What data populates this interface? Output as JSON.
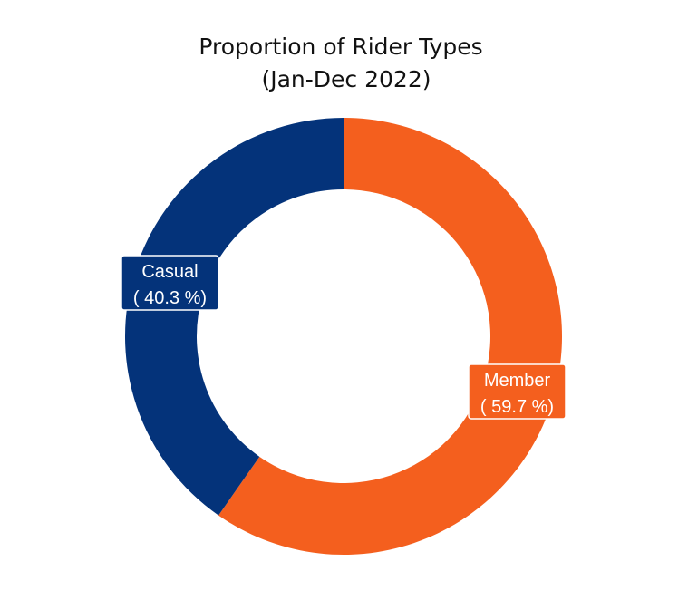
{
  "chart_data": {
    "type": "pie",
    "subtype": "donut",
    "title": [
      "Proportion of Rider Types",
      "(Jan-Dec 2022)"
    ],
    "slices": [
      {
        "name": "Member",
        "value": 59.7,
        "label_line1": "Member",
        "label_line2": "( 59.7 %)",
        "color": "#F45F1E"
      },
      {
        "name": "Casual",
        "value": 40.3,
        "label_line1": "Casual",
        "label_line2": "( 40.3 %)",
        "color": "#04337A"
      }
    ],
    "start": "12 o'clock",
    "direction": "clockwise",
    "legend": "none"
  }
}
